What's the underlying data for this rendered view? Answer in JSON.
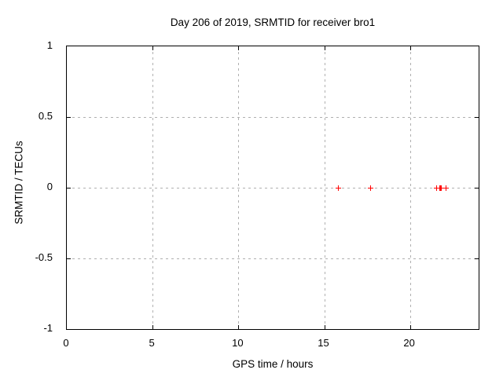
{
  "chart_data": {
    "type": "scatter",
    "title": "Day 206 of 2019, SRMTID for receiver bro1",
    "xlabel": "GPS time / hours",
    "ylabel": "SRMTID / TECUs",
    "xlim": [
      0,
      24
    ],
    "ylim": [
      -1,
      1
    ],
    "grid": true,
    "legend": false,
    "background_color": "#ffffff",
    "grid_color": "#b0b0b0",
    "axis_color": "#000000",
    "xticks": [
      {
        "value": 0,
        "label": "0"
      },
      {
        "value": 5,
        "label": "5"
      },
      {
        "value": 10,
        "label": "10"
      },
      {
        "value": 15,
        "label": "15"
      },
      {
        "value": 20,
        "label": "20"
      }
    ],
    "yticks": [
      {
        "value": 1,
        "label": "1"
      },
      {
        "value": 0.5,
        "label": "0.5"
      },
      {
        "value": 0,
        "label": "0"
      },
      {
        "value": -0.5,
        "label": "-0.5"
      },
      {
        "value": -1,
        "label": "-1"
      }
    ],
    "series": [
      {
        "name": "SRMTID",
        "marker": "plus",
        "color": "#ff0000",
        "points": [
          [
            15.82,
            0
          ],
          [
            17.72,
            0
          ],
          [
            21.55,
            0
          ],
          [
            21.74,
            0
          ],
          [
            21.79,
            0
          ],
          [
            21.84,
            0
          ],
          [
            22.08,
            0
          ]
        ]
      }
    ]
  }
}
